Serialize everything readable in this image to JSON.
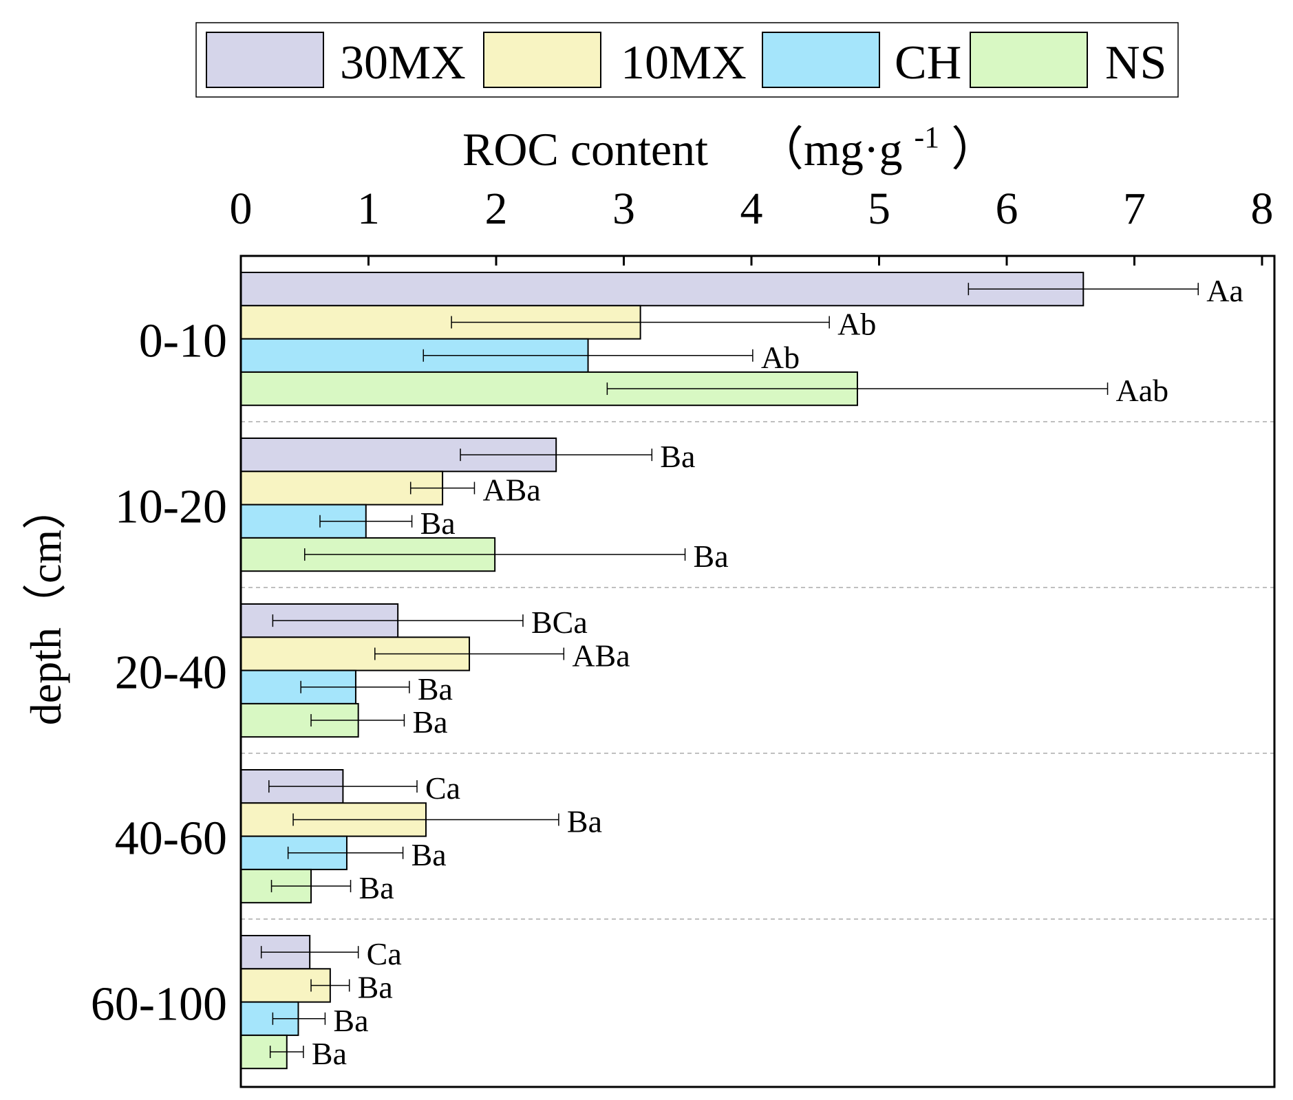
{
  "chart_data": {
    "type": "bar",
    "orientation": "horizontal",
    "xlabel": "ROC content",
    "xlabel_unit": "（mg·g",
    "xlabel_unit_sup": "-1",
    "xlabel_unit_close": "）",
    "ylabel": "depth（cm）",
    "xlim": [
      0,
      8
    ],
    "x_ticks": [
      0,
      1,
      2,
      3,
      4,
      5,
      6,
      7,
      8
    ],
    "x_tick_labels": [
      "0",
      "1",
      "2",
      "3",
      "4",
      "5",
      "6",
      "7",
      "8"
    ],
    "legend_position": "top",
    "categories": [
      "0-10",
      "10-20",
      "20-40",
      "40-60",
      "60-100"
    ],
    "series": [
      {
        "name": "30MX",
        "color": "#d5d5ea",
        "values": [
          6.6,
          2.47,
          1.23,
          0.8,
          0.54
        ],
        "err_low": [
          5.7,
          1.72,
          0.25,
          0.22,
          0.16
        ],
        "err_high": [
          7.5,
          3.22,
          2.21,
          1.38,
          0.92
        ],
        "labels": [
          "Aa",
          "Ba",
          "BCa",
          "Ca",
          "Ca"
        ]
      },
      {
        "name": "10MX",
        "color": "#f8f4c2",
        "values": [
          3.13,
          1.58,
          1.79,
          1.45,
          0.7
        ],
        "err_low": [
          1.65,
          1.33,
          1.05,
          0.41,
          0.55
        ],
        "err_high": [
          4.61,
          1.83,
          2.53,
          2.49,
          0.85
        ],
        "labels": [
          "Ab",
          "ABa",
          "ABa",
          "Ba",
          "Ba"
        ]
      },
      {
        "name": "CH",
        "color": "#a5e5fb",
        "values": [
          2.72,
          0.98,
          0.9,
          0.83,
          0.45
        ],
        "err_low": [
          1.43,
          0.62,
          0.47,
          0.37,
          0.25
        ],
        "err_high": [
          4.01,
          1.34,
          1.32,
          1.27,
          0.66
        ],
        "labels": [
          "Ab",
          "Ba",
          "Ba",
          "Ba",
          "Ba"
        ]
      },
      {
        "name": "NS",
        "color": "#d8f8c3",
        "values": [
          4.83,
          1.99,
          0.92,
          0.55,
          0.36
        ],
        "err_low": [
          2.87,
          0.5,
          0.55,
          0.24,
          0.23
        ],
        "err_high": [
          6.79,
          3.48,
          1.28,
          0.86,
          0.49
        ],
        "labels": [
          "Aab",
          "Ba",
          "Ba",
          "Ba",
          "Ba"
        ]
      }
    ]
  }
}
